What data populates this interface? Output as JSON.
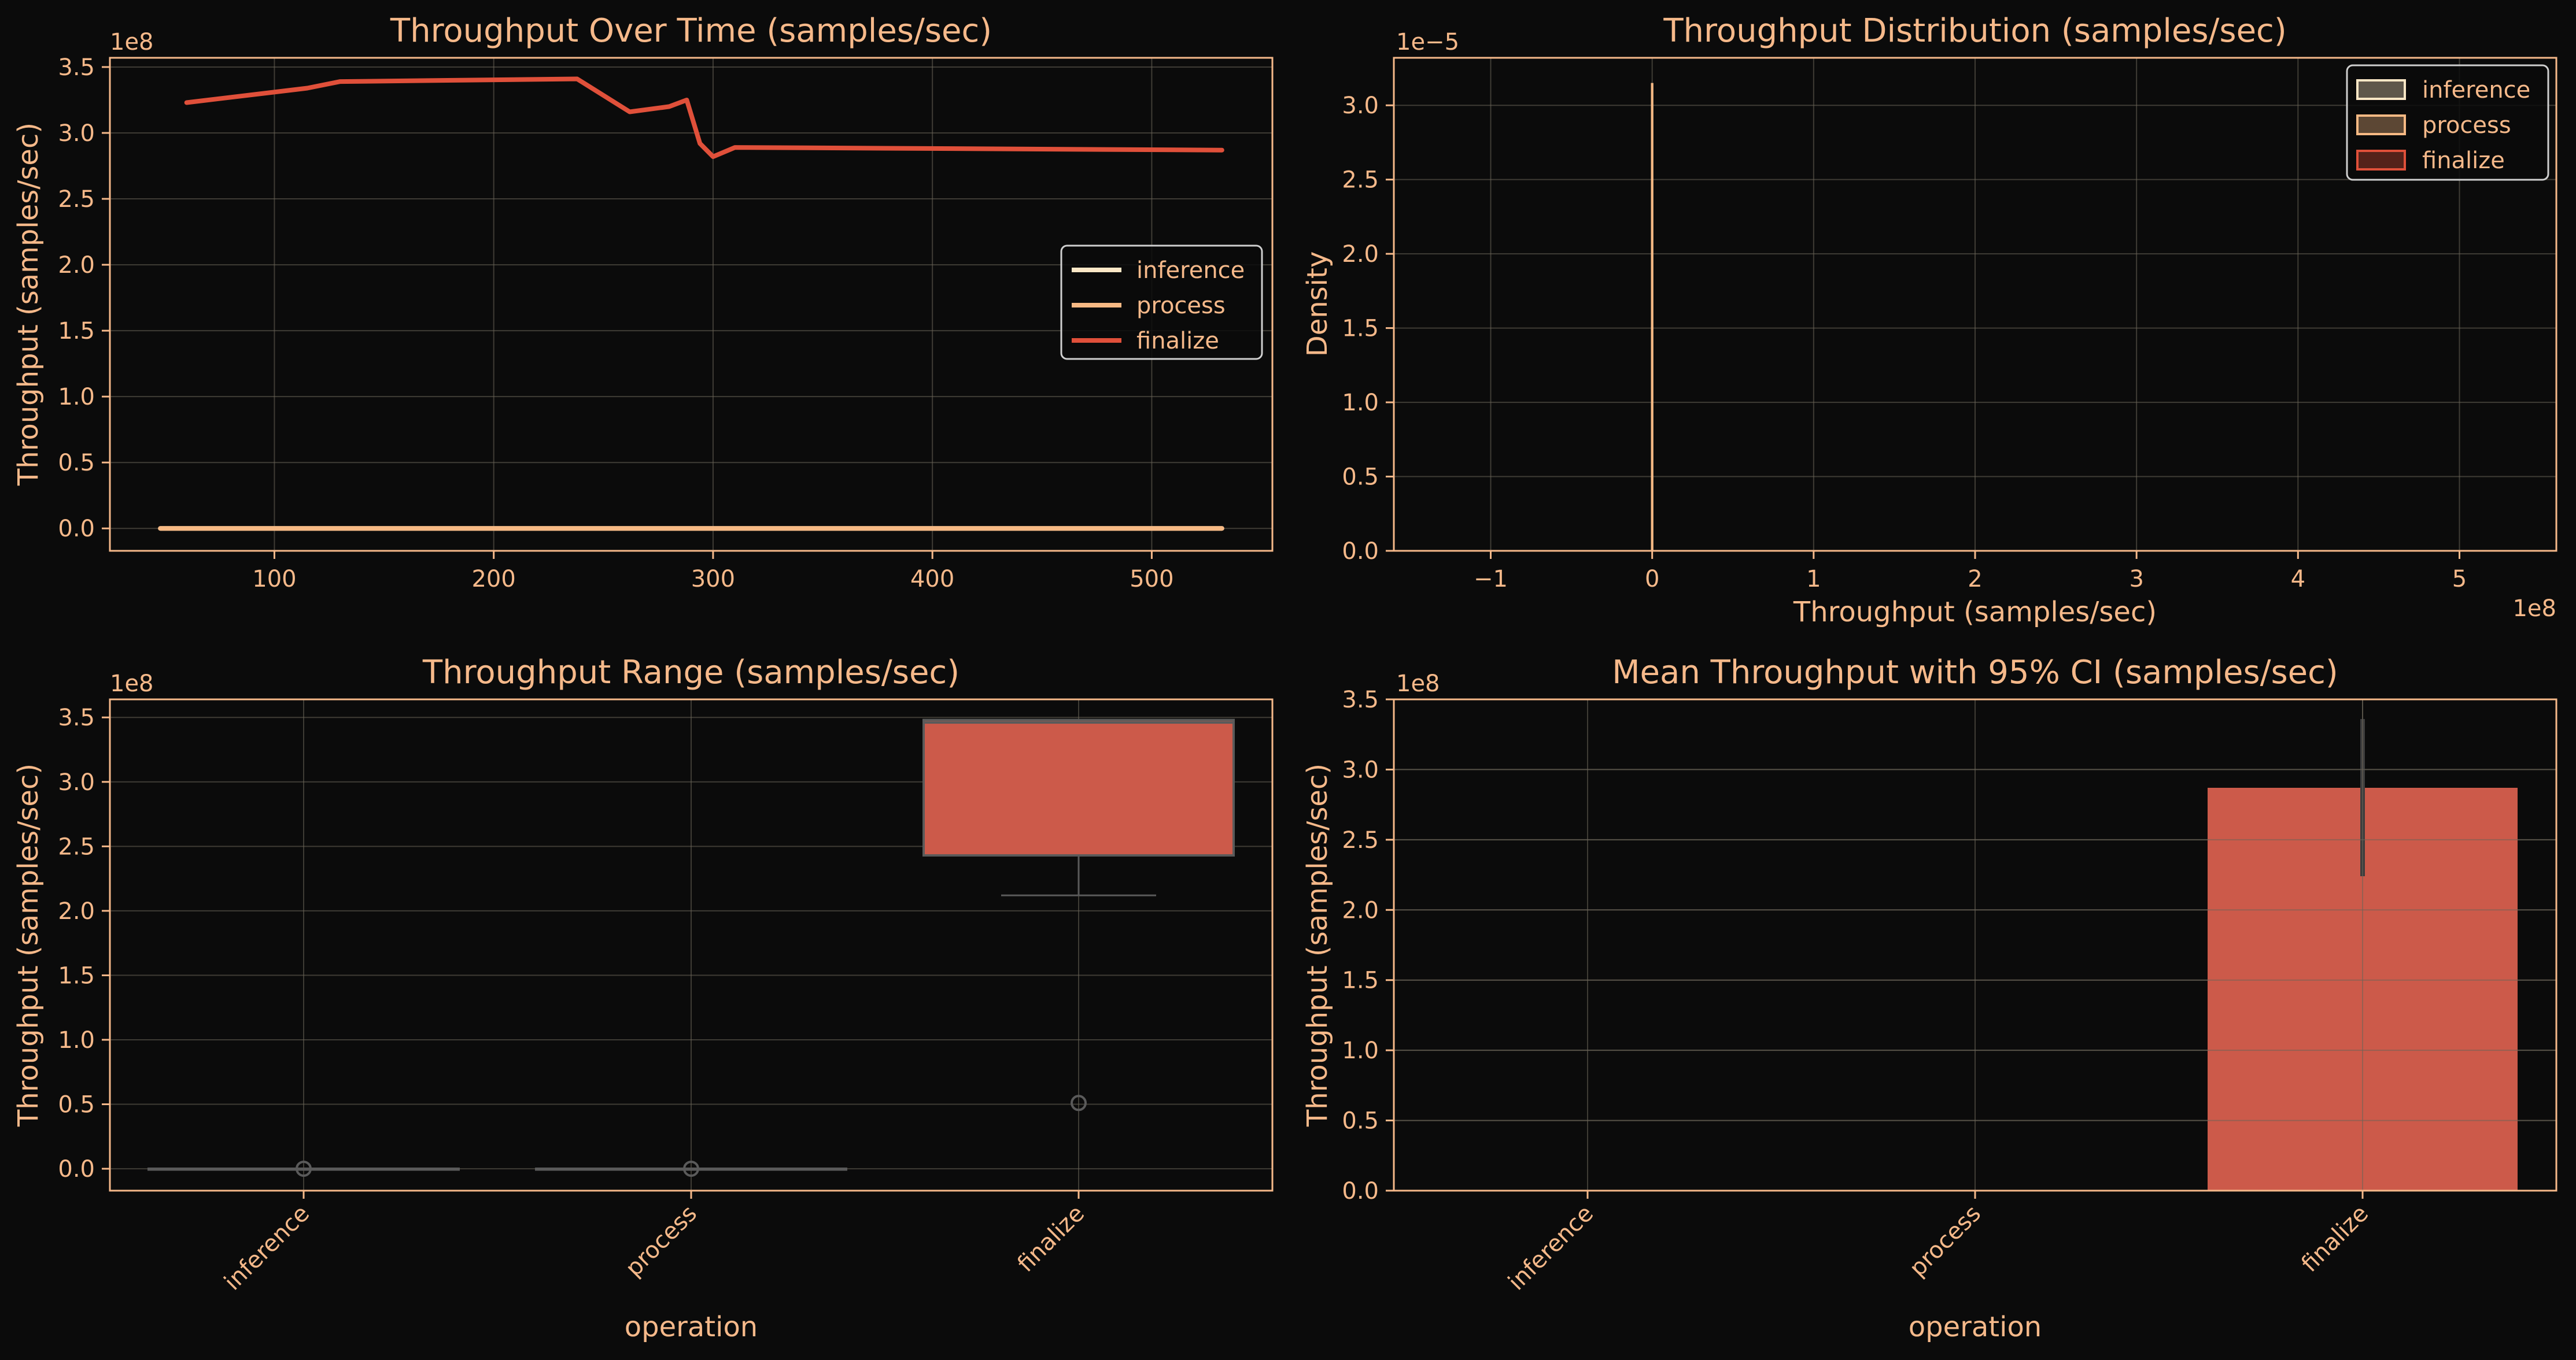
{
  "colors": {
    "background": "#0b0b0b",
    "text": "#f6b98a",
    "frame": "#f6b98a",
    "grid": "#6b6458",
    "inference": "#fbe7c6",
    "process": "#f7b984",
    "finalize": "#e0503a",
    "finalize_fill": "#cc5a4a",
    "box_line": "#5a5a5a",
    "ci_line": "#3d3d3d"
  },
  "chart_data": [
    {
      "id": "line",
      "type": "line",
      "title": "Throughput Over Time (samples/sec)",
      "xlabel": "",
      "ylabel": "Throughput (samples/sec)",
      "y_offset_label": "1e8",
      "xlim": [
        25,
        555
      ],
      "ylim": [
        -0.17,
        3.57
      ],
      "xticks": [
        100,
        200,
        300,
        400,
        500
      ],
      "yticks": [
        0.0,
        0.5,
        1.0,
        1.5,
        2.0,
        2.5,
        3.0,
        3.5
      ],
      "ytick_labels": [
        "0.0",
        "0.5",
        "1.0",
        "1.5",
        "2.0",
        "2.5",
        "3.0",
        "3.5"
      ],
      "grid": true,
      "legend_position": "center-right",
      "series": [
        {
          "name": "inference",
          "color_key": "inference",
          "x": [
            48,
            532
          ],
          "y": [
            0.0,
            0.0
          ]
        },
        {
          "name": "process",
          "color_key": "process",
          "x": [
            48,
            532
          ],
          "y": [
            0.0,
            0.0
          ]
        },
        {
          "name": "finalize",
          "color_key": "finalize",
          "x": [
            60,
            115,
            130,
            238,
            262,
            280,
            288,
            294,
            300,
            310,
            532
          ],
          "y": [
            3.23,
            3.34,
            3.39,
            3.41,
            3.16,
            3.2,
            3.25,
            2.92,
            2.82,
            2.89,
            2.87
          ]
        }
      ]
    },
    {
      "id": "hist",
      "type": "area",
      "title": "Throughput Distribution (samples/sec)",
      "xlabel": "Throughput (samples/sec)",
      "ylabel": "Density",
      "x_offset_label": "1e8",
      "y_offset_label": "1e−5",
      "xlim": [
        -1.6,
        5.6
      ],
      "ylim": [
        0.0,
        3.32
      ],
      "xticks": [
        -1,
        0,
        1,
        2,
        3,
        4,
        5
      ],
      "xtick_labels": [
        "−1",
        "0",
        "1",
        "2",
        "3",
        "4",
        "5"
      ],
      "yticks": [
        0.0,
        0.5,
        1.0,
        1.5,
        2.0,
        2.5,
        3.0
      ],
      "ytick_labels": [
        "0.0",
        "0.5",
        "1.0",
        "1.5",
        "2.0",
        "2.5",
        "3.0"
      ],
      "grid": true,
      "legend_position": "top-right",
      "series": [
        {
          "name": "inference",
          "color_key": "inference",
          "x": 0.0,
          "peak": 3.15
        },
        {
          "name": "process",
          "color_key": "process",
          "x": 0.0,
          "peak": 3.15
        },
        {
          "name": "finalize",
          "color_key": "finalize",
          "x": 0.0,
          "peak": 0.0
        }
      ]
    },
    {
      "id": "box",
      "type": "bar",
      "title": "Throughput Range (samples/sec)",
      "xlabel": "operation",
      "ylabel": "Throughput (samples/sec)",
      "y_offset_label": "1e8",
      "ylim": [
        -0.17,
        3.64
      ],
      "yticks": [
        0.0,
        0.5,
        1.0,
        1.5,
        2.0,
        2.5,
        3.0,
        3.5
      ],
      "ytick_labels": [
        "0.0",
        "0.5",
        "1.0",
        "1.5",
        "2.0",
        "2.5",
        "3.0",
        "3.5"
      ],
      "grid": true,
      "categories": [
        "inference",
        "process",
        "finalize"
      ],
      "boxes": [
        {
          "q1": 0.0,
          "median": 0.0,
          "q3": 0.0,
          "whisker_low": 0.0,
          "whisker_high": 0.0,
          "outliers": [
            0.0
          ]
        },
        {
          "q1": 0.0,
          "median": 0.0,
          "q3": 0.0,
          "whisker_low": 0.0,
          "whisker_high": 0.0,
          "outliers": [
            0.0
          ]
        },
        {
          "q1": 2.43,
          "median": 3.46,
          "q3": 3.48,
          "whisker_low": 2.12,
          "whisker_high": 3.48,
          "outliers": [
            0.51
          ]
        }
      ]
    },
    {
      "id": "bar",
      "type": "bar",
      "title": "Mean Throughput with 95% CI (samples/sec)",
      "xlabel": "operation",
      "ylabel": "Throughput (samples/sec)",
      "y_offset_label": "1e8",
      "ylim": [
        0.0,
        3.5
      ],
      "yticks": [
        0.0,
        0.5,
        1.0,
        1.5,
        2.0,
        2.5,
        3.0,
        3.5
      ],
      "ytick_labels": [
        "0.0",
        "0.5",
        "1.0",
        "1.5",
        "2.0",
        "2.5",
        "3.0",
        "3.5"
      ],
      "grid": true,
      "categories": [
        "inference",
        "process",
        "finalize"
      ],
      "values": [
        0.0,
        0.0,
        2.87
      ],
      "ci_low": [
        0.0,
        0.0,
        2.24
      ],
      "ci_high": [
        0.0,
        0.0,
        3.36
      ]
    }
  ]
}
